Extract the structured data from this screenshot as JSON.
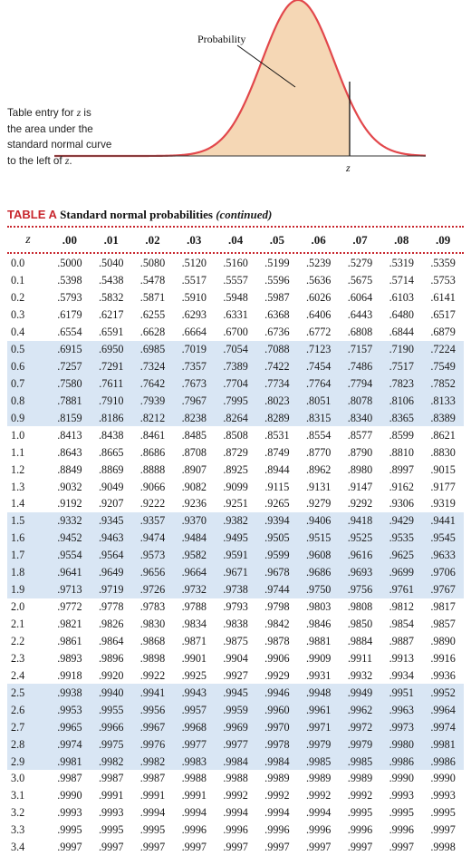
{
  "figure": {
    "curve_label": "Probability",
    "z_marker": "z",
    "curve_color": "#e2474b",
    "fill_color": "#f5d7b5"
  },
  "side_note": {
    "line1_text": "Table entry for ",
    "line1_var": "z",
    "line1_tail": " is",
    "line2": "the area under the",
    "line3": "standard normal curve",
    "line4_text": "to the left of ",
    "line4_var": "z",
    "line4_tail": "."
  },
  "table": {
    "label": "TABLE A",
    "name": "Standard normal probabilities",
    "continued": "(continued)",
    "accent": "#c8262d",
    "shade_color": "#d9e6f4",
    "z_header": "z",
    "columns": [
      ".00",
      ".01",
      ".02",
      ".03",
      ".04",
      ".05",
      ".06",
      ".07",
      ".08",
      ".09"
    ],
    "rows": [
      {
        "z": "0.0",
        "v": [
          ".5000",
          ".5040",
          ".5080",
          ".5120",
          ".5160",
          ".5199",
          ".5239",
          ".5279",
          ".5319",
          ".5359"
        ]
      },
      {
        "z": "0.1",
        "v": [
          ".5398",
          ".5438",
          ".5478",
          ".5517",
          ".5557",
          ".5596",
          ".5636",
          ".5675",
          ".5714",
          ".5753"
        ]
      },
      {
        "z": "0.2",
        "v": [
          ".5793",
          ".5832",
          ".5871",
          ".5910",
          ".5948",
          ".5987",
          ".6026",
          ".6064",
          ".6103",
          ".6141"
        ]
      },
      {
        "z": "0.3",
        "v": [
          ".6179",
          ".6217",
          ".6255",
          ".6293",
          ".6331",
          ".6368",
          ".6406",
          ".6443",
          ".6480",
          ".6517"
        ]
      },
      {
        "z": "0.4",
        "v": [
          ".6554",
          ".6591",
          ".6628",
          ".6664",
          ".6700",
          ".6736",
          ".6772",
          ".6808",
          ".6844",
          ".6879"
        ]
      },
      {
        "z": "0.5",
        "v": [
          ".6915",
          ".6950",
          ".6985",
          ".7019",
          ".7054",
          ".7088",
          ".7123",
          ".7157",
          ".7190",
          ".7224"
        ]
      },
      {
        "z": "0.6",
        "v": [
          ".7257",
          ".7291",
          ".7324",
          ".7357",
          ".7389",
          ".7422",
          ".7454",
          ".7486",
          ".7517",
          ".7549"
        ]
      },
      {
        "z": "0.7",
        "v": [
          ".7580",
          ".7611",
          ".7642",
          ".7673",
          ".7704",
          ".7734",
          ".7764",
          ".7794",
          ".7823",
          ".7852"
        ]
      },
      {
        "z": "0.8",
        "v": [
          ".7881",
          ".7910",
          ".7939",
          ".7967",
          ".7995",
          ".8023",
          ".8051",
          ".8078",
          ".8106",
          ".8133"
        ]
      },
      {
        "z": "0.9",
        "v": [
          ".8159",
          ".8186",
          ".8212",
          ".8238",
          ".8264",
          ".8289",
          ".8315",
          ".8340",
          ".8365",
          ".8389"
        ]
      },
      {
        "z": "1.0",
        "v": [
          ".8413",
          ".8438",
          ".8461",
          ".8485",
          ".8508",
          ".8531",
          ".8554",
          ".8577",
          ".8599",
          ".8621"
        ]
      },
      {
        "z": "1.1",
        "v": [
          ".8643",
          ".8665",
          ".8686",
          ".8708",
          ".8729",
          ".8749",
          ".8770",
          ".8790",
          ".8810",
          ".8830"
        ]
      },
      {
        "z": "1.2",
        "v": [
          ".8849",
          ".8869",
          ".8888",
          ".8907",
          ".8925",
          ".8944",
          ".8962",
          ".8980",
          ".8997",
          ".9015"
        ]
      },
      {
        "z": "1.3",
        "v": [
          ".9032",
          ".9049",
          ".9066",
          ".9082",
          ".9099",
          ".9115",
          ".9131",
          ".9147",
          ".9162",
          ".9177"
        ]
      },
      {
        "z": "1.4",
        "v": [
          ".9192",
          ".9207",
          ".9222",
          ".9236",
          ".9251",
          ".9265",
          ".9279",
          ".9292",
          ".9306",
          ".9319"
        ]
      },
      {
        "z": "1.5",
        "v": [
          ".9332",
          ".9345",
          ".9357",
          ".9370",
          ".9382",
          ".9394",
          ".9406",
          ".9418",
          ".9429",
          ".9441"
        ]
      },
      {
        "z": "1.6",
        "v": [
          ".9452",
          ".9463",
          ".9474",
          ".9484",
          ".9495",
          ".9505",
          ".9515",
          ".9525",
          ".9535",
          ".9545"
        ]
      },
      {
        "z": "1.7",
        "v": [
          ".9554",
          ".9564",
          ".9573",
          ".9582",
          ".9591",
          ".9599",
          ".9608",
          ".9616",
          ".9625",
          ".9633"
        ]
      },
      {
        "z": "1.8",
        "v": [
          ".9641",
          ".9649",
          ".9656",
          ".9664",
          ".9671",
          ".9678",
          ".9686",
          ".9693",
          ".9699",
          ".9706"
        ]
      },
      {
        "z": "1.9",
        "v": [
          ".9713",
          ".9719",
          ".9726",
          ".9732",
          ".9738",
          ".9744",
          ".9750",
          ".9756",
          ".9761",
          ".9767"
        ]
      },
      {
        "z": "2.0",
        "v": [
          ".9772",
          ".9778",
          ".9783",
          ".9788",
          ".9793",
          ".9798",
          ".9803",
          ".9808",
          ".9812",
          ".9817"
        ]
      },
      {
        "z": "2.1",
        "v": [
          ".9821",
          ".9826",
          ".9830",
          ".9834",
          ".9838",
          ".9842",
          ".9846",
          ".9850",
          ".9854",
          ".9857"
        ]
      },
      {
        "z": "2.2",
        "v": [
          ".9861",
          ".9864",
          ".9868",
          ".9871",
          ".9875",
          ".9878",
          ".9881",
          ".9884",
          ".9887",
          ".9890"
        ]
      },
      {
        "z": "2.3",
        "v": [
          ".9893",
          ".9896",
          ".9898",
          ".9901",
          ".9904",
          ".9906",
          ".9909",
          ".9911",
          ".9913",
          ".9916"
        ]
      },
      {
        "z": "2.4",
        "v": [
          ".9918",
          ".9920",
          ".9922",
          ".9925",
          ".9927",
          ".9929",
          ".9931",
          ".9932",
          ".9934",
          ".9936"
        ]
      },
      {
        "z": "2.5",
        "v": [
          ".9938",
          ".9940",
          ".9941",
          ".9943",
          ".9945",
          ".9946",
          ".9948",
          ".9949",
          ".9951",
          ".9952"
        ]
      },
      {
        "z": "2.6",
        "v": [
          ".9953",
          ".9955",
          ".9956",
          ".9957",
          ".9959",
          ".9960",
          ".9961",
          ".9962",
          ".9963",
          ".9964"
        ]
      },
      {
        "z": "2.7",
        "v": [
          ".9965",
          ".9966",
          ".9967",
          ".9968",
          ".9969",
          ".9970",
          ".9971",
          ".9972",
          ".9973",
          ".9974"
        ]
      },
      {
        "z": "2.8",
        "v": [
          ".9974",
          ".9975",
          ".9976",
          ".9977",
          ".9977",
          ".9978",
          ".9979",
          ".9979",
          ".9980",
          ".9981"
        ]
      },
      {
        "z": "2.9",
        "v": [
          ".9981",
          ".9982",
          ".9982",
          ".9983",
          ".9984",
          ".9984",
          ".9985",
          ".9985",
          ".9986",
          ".9986"
        ]
      },
      {
        "z": "3.0",
        "v": [
          ".9987",
          ".9987",
          ".9987",
          ".9988",
          ".9988",
          ".9989",
          ".9989",
          ".9989",
          ".9990",
          ".9990"
        ]
      },
      {
        "z": "3.1",
        "v": [
          ".9990",
          ".9991",
          ".9991",
          ".9991",
          ".9992",
          ".9992",
          ".9992",
          ".9992",
          ".9993",
          ".9993"
        ]
      },
      {
        "z": "3.2",
        "v": [
          ".9993",
          ".9993",
          ".9994",
          ".9994",
          ".9994",
          ".9994",
          ".9994",
          ".9995",
          ".9995",
          ".9995"
        ]
      },
      {
        "z": "3.3",
        "v": [
          ".9995",
          ".9995",
          ".9995",
          ".9996",
          ".9996",
          ".9996",
          ".9996",
          ".9996",
          ".9996",
          ".9997"
        ]
      },
      {
        "z": "3.4",
        "v": [
          ".9997",
          ".9997",
          ".9997",
          ".9997",
          ".9997",
          ".9997",
          ".9997",
          ".9997",
          ".9997",
          ".9998"
        ]
      }
    ]
  }
}
